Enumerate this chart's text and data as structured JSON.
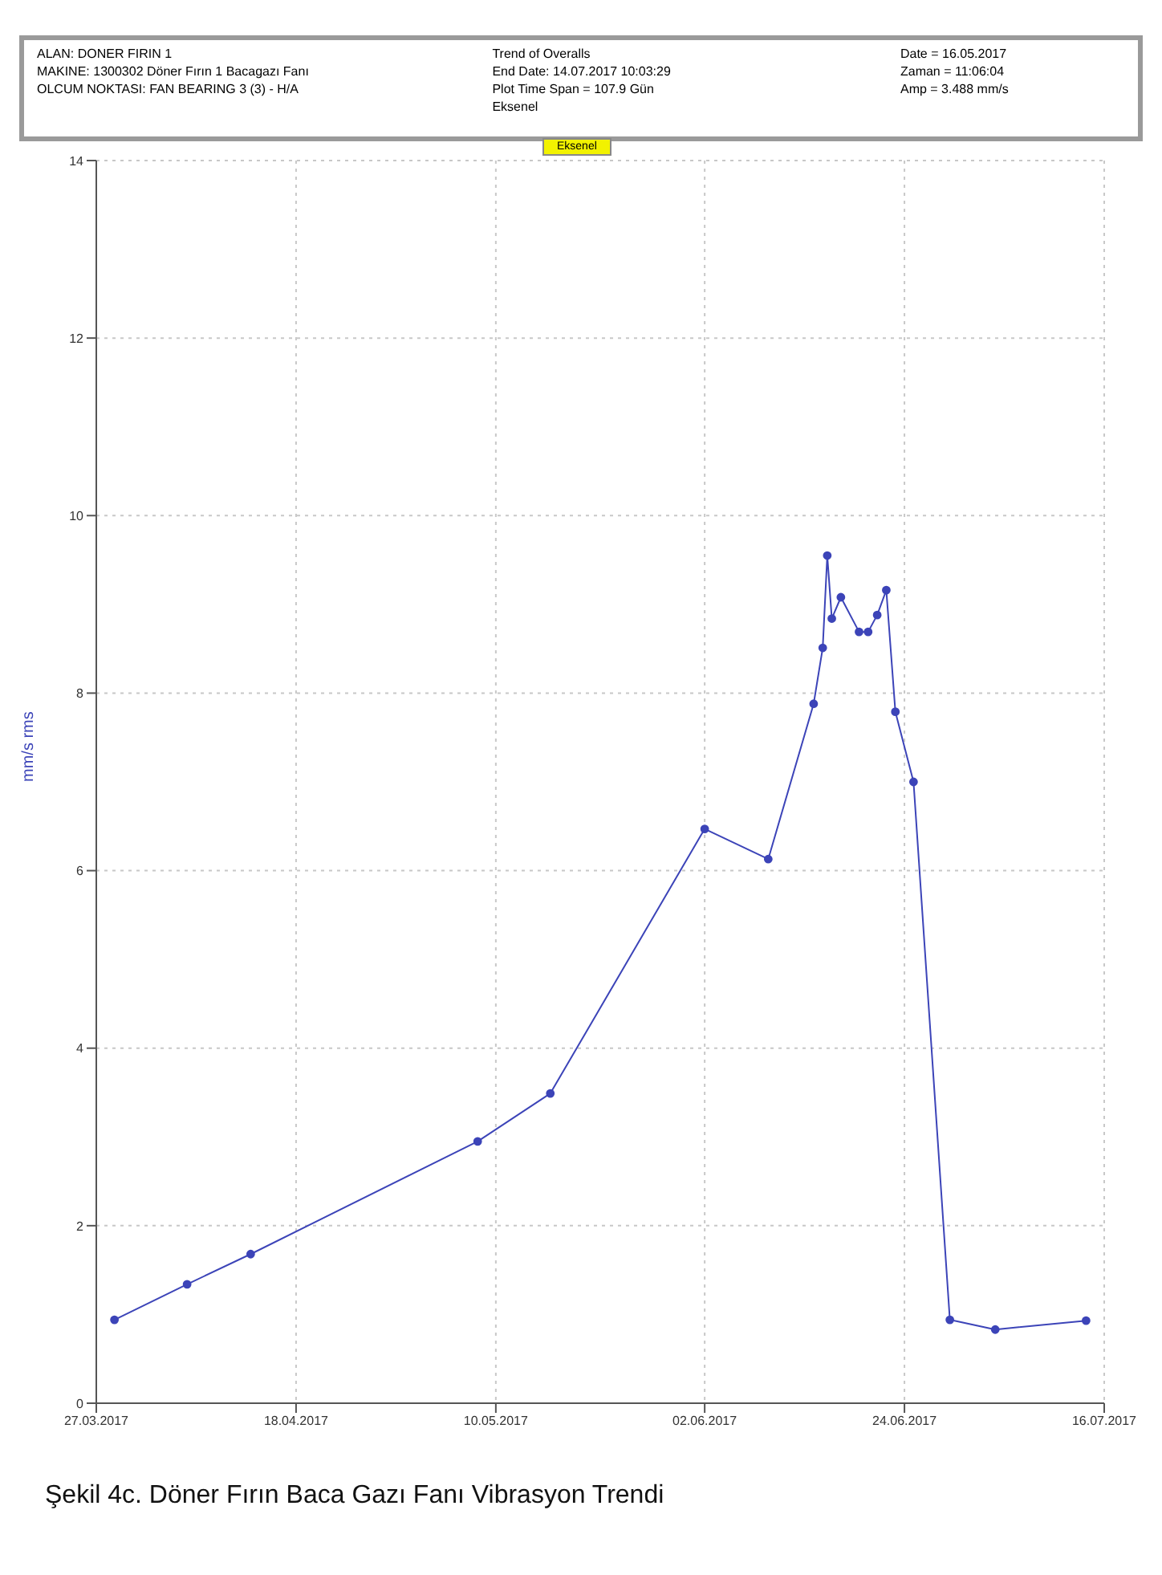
{
  "chart_data": {
    "type": "line",
    "title": "Şekil 4c. Döner Fırın Baca Gazı Fanı Vibrasyon Trendi",
    "ylabel": "mm/s rms",
    "annotations": [
      "ALAN: DONER FIRIN 1",
      "MAKINE: 1300302 Döner Fırın 1 Bacagazı Fanı",
      "OLCUM NOKTASI: FAN BEARING 3 (3) - H/A",
      "Trend of Overalls",
      "End Date: 14.07.2017 10:03:29",
      "Plot Time Span = 107.9 Gün",
      "Eksenel",
      "Date = 16.05.2017",
      "Zaman = 11:06:04",
      "Amp = 3.488 mm/s",
      "Eksenel"
    ],
    "x": [
      "2017-03-29",
      "2017-04-06",
      "2017-04-13",
      "2017-05-08",
      "2017-05-16",
      "2017-06-02",
      "2017-06-09",
      "2017-06-14",
      "2017-06-15",
      "2017-06-15T12:00",
      "2017-06-16",
      "2017-06-17",
      "2017-06-19",
      "2017-06-20",
      "2017-06-21",
      "2017-06-22",
      "2017-06-23",
      "2017-06-25",
      "2017-06-29",
      "2017-07-04",
      "2017-07-14"
    ],
    "series": [
      {
        "color": "#3c44b8",
        "values": [
          0.94,
          1.34,
          1.68,
          2.95,
          3.49,
          6.47,
          6.13,
          7.88,
          8.51,
          9.55,
          8.84,
          9.08,
          8.69,
          8.69,
          8.88,
          9.16,
          7.79,
          7.0,
          0.94,
          0.83,
          0.93
        ]
      }
    ],
    "xlim": [
      "2017-03-27",
      "2017-07-16"
    ],
    "xticks": [
      {
        "value": "2017-03-27",
        "label": "27.03.2017"
      },
      {
        "value": "2017-04-18",
        "label": "18.04.2017"
      },
      {
        "value": "2017-05-10",
        "label": "10.05.2017"
      },
      {
        "value": "2017-06-02",
        "label": "02.06.2017"
      },
      {
        "value": "2017-06-24",
        "label": "24.06.2017"
      },
      {
        "value": "2017-07-16",
        "label": "16.07.2017"
      }
    ],
    "ylim": [
      0,
      14
    ],
    "yticks": [
      0,
      2,
      4,
      6,
      8,
      10,
      12,
      14
    ],
    "grid": true,
    "marker": "circle",
    "line_style": "solid"
  }
}
